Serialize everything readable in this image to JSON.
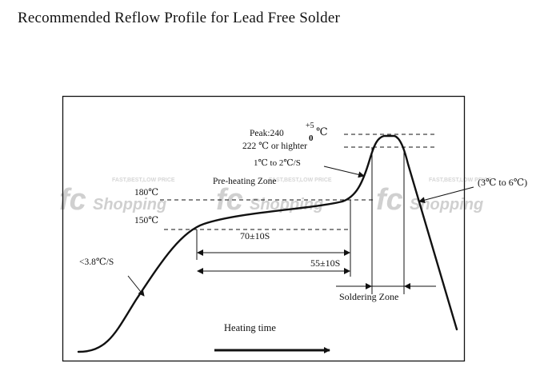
{
  "title": "Recommended Reflow Profile for Lead Free Solder",
  "watermark": {
    "logo": "fc",
    "text": "Shopping",
    "tagline": "FAST,BEST,LOW PRICE"
  },
  "labels": {
    "peak": "Peak:240",
    "peak_upper": "+5",
    "peak_lower": "0",
    "peak_unit": "℃",
    "peak_condition": "222 ℃  or highter",
    "ramp_up_rate": "1℃  to 2℃/S",
    "preheating_zone": "Pre-heating Zone",
    "temp_180": "180℃",
    "temp_150": "150℃",
    "cooling_rate": "(3℃  to 6℃)",
    "initial_rate": "<3.8℃/S",
    "preheat_time": "70±10S",
    "soak_time": "55±10S",
    "soldering_zone": "Soldering Zone",
    "heating_time": "Heating time"
  },
  "colors": {
    "line": "#111111",
    "watermark": "#d0d0d0"
  }
}
